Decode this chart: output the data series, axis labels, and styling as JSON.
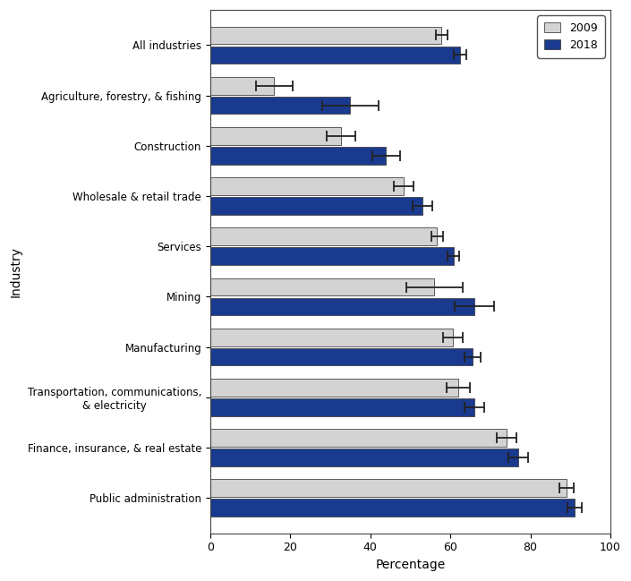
{
  "categories": [
    "Public administration",
    "Finance, insurance, & real estate",
    "Transportation, communications,\n& electricity",
    "Manufacturing",
    "Mining",
    "Services",
    "Wholesale & retail trade",
    "Construction",
    "Agriculture, forestry, & fishing",
    "All industries"
  ],
  "values_2009": [
    89.0,
    74.0,
    62.0,
    60.7,
    56.0,
    56.7,
    48.3,
    32.7,
    16.0,
    57.8
  ],
  "values_2018": [
    91.0,
    77.0,
    66.0,
    65.5,
    66.0,
    60.8,
    53.1,
    43.9,
    35.0,
    62.4
  ],
  "errors_2009": [
    1.8,
    2.5,
    3.0,
    2.5,
    7.0,
    1.5,
    2.5,
    3.5,
    4.5,
    1.5
  ],
  "errors_2018": [
    1.8,
    2.5,
    2.5,
    2.0,
    5.0,
    1.5,
    2.5,
    3.5,
    7.0,
    1.5
  ],
  "color_2009": "#d3d3d3",
  "color_2018": "#1a3a8f",
  "bar_edge_color": "#444444",
  "xlabel": "Percentage",
  "ylabel": "Industry",
  "xlim": [
    0,
    100
  ],
  "legend_labels": [
    "2009",
    "2018"
  ],
  "figsize": [
    7.05,
    6.49
  ],
  "dpi": 100
}
